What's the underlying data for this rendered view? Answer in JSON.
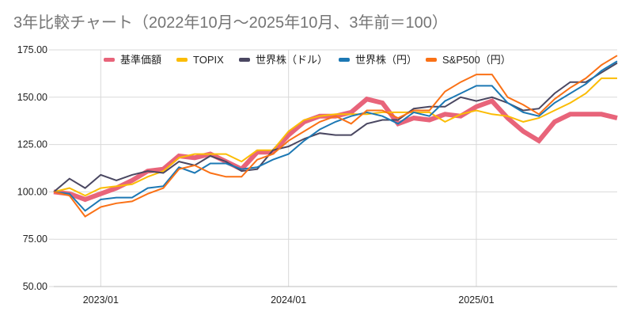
{
  "chart_data": {
    "type": "line",
    "title": "3年比較チャート（2022年10月〜2025年10月、3年前＝100）",
    "xlabel": "",
    "ylabel": "",
    "ylim": [
      50,
      175
    ],
    "yticks": [
      50,
      75,
      100,
      125,
      150,
      175
    ],
    "ytick_labels": [
      "50.00",
      "75.00",
      "100.00",
      "125.00",
      "150.00",
      "175.00"
    ],
    "x": [
      "2022/10",
      "2022/11",
      "2022/12",
      "2023/01",
      "2023/02",
      "2023/03",
      "2023/04",
      "2023/05",
      "2023/06",
      "2023/07",
      "2023/08",
      "2023/09",
      "2023/10",
      "2023/11",
      "2023/12",
      "2024/01",
      "2024/02",
      "2024/03",
      "2024/04",
      "2024/05",
      "2024/06",
      "2024/07",
      "2024/08",
      "2024/09",
      "2024/10",
      "2024/11",
      "2024/12",
      "2025/01",
      "2025/02",
      "2025/03",
      "2025/04",
      "2025/05",
      "2025/06",
      "2025/07",
      "2025/08",
      "2025/09",
      "2025/10"
    ],
    "xtick_labels": [
      {
        "index": 3,
        "label": "2023/01"
      },
      {
        "index": 15,
        "label": "2024/01"
      },
      {
        "index": 27,
        "label": "2025/01"
      }
    ],
    "grid": true,
    "legend_position": "top",
    "series": [
      {
        "name": "基準価額",
        "color": "#e8647a",
        "thick": true,
        "values": [
          100,
          99,
          96,
          99,
          102,
          106,
          111,
          112,
          119,
          118,
          120,
          116,
          112,
          121,
          121,
          130,
          137,
          140,
          140,
          142,
          149,
          147,
          136,
          139,
          138,
          141,
          140,
          145,
          148,
          139,
          132,
          127,
          137,
          141,
          141,
          141,
          139
        ]
      },
      {
        "name": "TOPIX",
        "color": "#fbbc04",
        "thick": false,
        "values": [
          100,
          102,
          98,
          102,
          103,
          104,
          108,
          111,
          118,
          120,
          120,
          120,
          116,
          122,
          122,
          132,
          138,
          140,
          141,
          141,
          141,
          142,
          142,
          142,
          142,
          137,
          141,
          143,
          141,
          140,
          137,
          139,
          143,
          147,
          152,
          160,
          160
        ]
      },
      {
        "name": "世界株（ドル）",
        "color": "#4a4761",
        "thick": false,
        "values": [
          100,
          107,
          102,
          109,
          106,
          109,
          111,
          110,
          116,
          114,
          119,
          116,
          111,
          112,
          122,
          124,
          128,
          131,
          130,
          130,
          136,
          138,
          138,
          144,
          145,
          145,
          150,
          148,
          150,
          147,
          143,
          144,
          152,
          158,
          158,
          163,
          168
        ]
      },
      {
        "name": "世界株（円）",
        "color": "#1c78b4",
        "thick": false,
        "values": [
          100,
          99,
          90,
          96,
          97,
          97,
          102,
          103,
          113,
          110,
          115,
          115,
          112,
          113,
          117,
          120,
          127,
          133,
          137,
          140,
          142,
          140,
          136,
          142,
          140,
          148,
          152,
          156,
          156,
          147,
          142,
          140,
          147,
          152,
          157,
          164,
          169
        ]
      },
      {
        "name": "S&P500（円）",
        "color": "#fa7116",
        "thick": false,
        "values": [
          100,
          98,
          87,
          92,
          94,
          95,
          99,
          102,
          112,
          114,
          110,
          108,
          108,
          117,
          120,
          127,
          132,
          137,
          140,
          136,
          143,
          143,
          139,
          143,
          143,
          153,
          158,
          162,
          162,
          150,
          146,
          141,
          149,
          155,
          160,
          167,
          172
        ]
      }
    ]
  }
}
